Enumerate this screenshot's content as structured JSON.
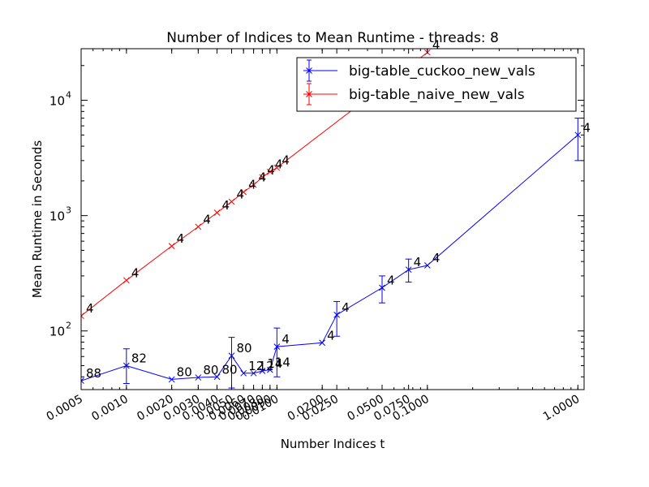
{
  "chart_data": {
    "type": "line",
    "title": "Number of Indices to Mean Runtime - threads: 8",
    "xlabel": "Number Indices t",
    "ylabel": "Mean Runtime in Seconds",
    "x_scale": "log",
    "y_scale": "log",
    "xlim": [
      0.0005,
      1.1
    ],
    "ylim": [
      31,
      28000
    ],
    "x_ticks": [
      {
        "value": 0.0005,
        "label": "0.0005"
      },
      {
        "value": 0.001,
        "label": "0.0010"
      },
      {
        "value": 0.002,
        "label": "0.0020"
      },
      {
        "value": 0.003,
        "label": "0.0030"
      },
      {
        "value": 0.004,
        "label": "0.0040"
      },
      {
        "value": 0.005,
        "label": "0.0050"
      },
      {
        "value": 0.006,
        "label": "0.0060"
      },
      {
        "value": 0.007,
        "label": "0.0070"
      },
      {
        "value": 0.008,
        "label": "0.0080"
      },
      {
        "value": 0.009,
        "label": "0.0090"
      },
      {
        "value": 0.01,
        "label": "0.0100"
      },
      {
        "value": 0.02,
        "label": "0.0200"
      },
      {
        "value": 0.025,
        "label": "0.0250"
      },
      {
        "value": 0.05,
        "label": "0.0500"
      },
      {
        "value": 0.075,
        "label": "0.0750"
      },
      {
        "value": 0.1,
        "label": "0.1000"
      },
      {
        "value": 1.0,
        "label": "1.0000"
      }
    ],
    "y_ticks": [
      {
        "value": 100,
        "base": "10",
        "exp": "2"
      },
      {
        "value": 1000,
        "base": "10",
        "exp": "3"
      },
      {
        "value": 10000,
        "base": "10",
        "exp": "4"
      }
    ],
    "legend_position": "top-right",
    "series": [
      {
        "name": "big-table_cuckoo_new_vals",
        "color": "#0000ff",
        "points": [
          {
            "x": 0.0005,
            "y": 37,
            "label": "88"
          },
          {
            "x": 0.001,
            "y": 50,
            "err_low": 35,
            "err_high": 70,
            "label": "82"
          },
          {
            "x": 0.002,
            "y": 38,
            "label": "80"
          },
          {
            "x": 0.003,
            "y": 39.5,
            "label": "80"
          },
          {
            "x": 0.004,
            "y": 40,
            "label": "80"
          },
          {
            "x": 0.005,
            "y": 61,
            "err_low": 32,
            "err_high": 88,
            "label": "80"
          },
          {
            "x": 0.006,
            "y": 43,
            "label": "12"
          },
          {
            "x": 0.007,
            "y": 43,
            "label": "12"
          },
          {
            "x": 0.008,
            "y": 45,
            "label": "14"
          },
          {
            "x": 0.009,
            "y": 46,
            "label": "14"
          },
          {
            "x": 0.01,
            "y": 73,
            "err_low": 40,
            "err_high": 106,
            "label": "4"
          },
          {
            "x": 0.02,
            "y": 79,
            "label": "4"
          },
          {
            "x": 0.025,
            "y": 138,
            "err_low": 90,
            "err_high": 180,
            "label": "4"
          },
          {
            "x": 0.05,
            "y": 237,
            "err_low": 175,
            "err_high": 300,
            "label": "4"
          },
          {
            "x": 0.075,
            "y": 340,
            "err_low": 265,
            "err_high": 420,
            "label": "4"
          },
          {
            "x": 0.1,
            "y": 370,
            "label": "4"
          },
          {
            "x": 1.0,
            "y": 5000,
            "err_low": 3000,
            "err_high": 7000,
            "label": "4"
          }
        ]
      },
      {
        "name": "big-table_naive_new_vals",
        "color": "#ff0000",
        "points": [
          {
            "x": 0.0005,
            "y": 135,
            "label": "4"
          },
          {
            "x": 0.001,
            "y": 275,
            "label": "4"
          },
          {
            "x": 0.002,
            "y": 545,
            "label": "4"
          },
          {
            "x": 0.003,
            "y": 800,
            "label": "4"
          },
          {
            "x": 0.004,
            "y": 1060,
            "label": "4"
          },
          {
            "x": 0.005,
            "y": 1320,
            "label": "4"
          },
          {
            "x": 0.006,
            "y": 1600,
            "label": "4"
          },
          {
            "x": 0.007,
            "y": 1850,
            "label": "4"
          },
          {
            "x": 0.008,
            "y": 2150,
            "label": "4"
          },
          {
            "x": 0.009,
            "y": 2400,
            "label": "4"
          },
          {
            "x": 0.01,
            "y": 2600,
            "label": "4"
          },
          {
            "x": 0.1,
            "y": 26000,
            "label": "4"
          }
        ]
      }
    ]
  }
}
